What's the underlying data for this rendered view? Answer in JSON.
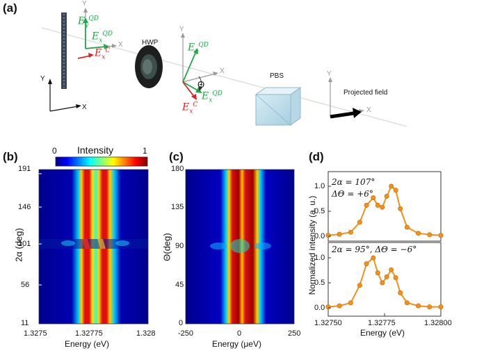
{
  "panels": {
    "a": "(a)",
    "b": "(b)",
    "c": "(c)",
    "d": "(d)"
  },
  "schematic": {
    "axis_y": "Y",
    "axis_x": "X",
    "hwp": "HWP",
    "pbs": "PBS",
    "projected_field": "Projected field",
    "theta": "Θ",
    "ey_qd": "E",
    "ey_qd_sup": "QD",
    "ey_qd_sub": "y",
    "ex_qd_sub": "x",
    "ex_c_sup": "C",
    "colors": {
      "qd": "#22a64a",
      "cavity": "#dd2222",
      "axis": "#999999"
    }
  },
  "colorbar": {
    "title": "Intensity",
    "min": "0",
    "max": "1"
  },
  "panel_b": {
    "ylabel": "2α (deg)",
    "xlabel": "Energy (eV)",
    "yticks": [
      "191",
      "146",
      "101",
      "56",
      "11"
    ],
    "xticks": [
      "1.3275",
      "1.32775",
      "1.328"
    ]
  },
  "panel_c": {
    "ylabel": "Θ(deg)",
    "xlabel": "Energy (μeV)",
    "yticks": [
      "180",
      "135",
      "90",
      "45",
      "0"
    ],
    "xticks": [
      "-250",
      "0",
      "250"
    ]
  },
  "panel_d": {
    "ylabel": "Normalized intensity (a. u.)",
    "xlabel": "Energy (eV)",
    "xticks": [
      "1.32750",
      "1.32775",
      "1.32800"
    ],
    "yticks_top": [
      "1.0",
      "0.5",
      "0.0"
    ],
    "yticks_bottom": [
      "1.0",
      "0.5",
      "0.0"
    ],
    "top_annot1": "2α = 107°",
    "top_annot2": "ΔΘ = +6°",
    "bottom_annot": "2α = 95°, ΔΘ = −6°",
    "marker_color": "#f0901e"
  },
  "chart_data": [
    {
      "type": "heatmap",
      "title": "",
      "xlabel": "Energy (eV)",
      "ylabel": "2α (deg)",
      "xlim": [
        1.3275,
        1.328
      ],
      "ylim": [
        11,
        191
      ],
      "description_of_bands": "two vertical emission lines near 1.32770 and 1.32780 eV, anticrossing near 2α = 101",
      "colorbar": [
        0,
        1
      ]
    },
    {
      "type": "heatmap",
      "title": "",
      "xlabel": "Energy (μeV)",
      "ylabel": "Θ(deg)",
      "xlim": [
        -250,
        250
      ],
      "ylim": [
        0,
        180
      ],
      "colorbar": [
        0,
        1
      ]
    },
    {
      "type": "scatter",
      "xlabel": "Energy (eV)",
      "ylabel": "Normalized intensity (a. u.)",
      "xlim": [
        1.3275,
        1.328
      ],
      "ylim": [
        0,
        1.1
      ],
      "series": [
        {
          "name": "2α = 107°, ΔΘ = +6°",
          "x": [
            1.3275,
            1.32755,
            1.3276,
            1.32764,
            1.32767,
            1.3277,
            1.32772,
            1.32774,
            1.32776,
            1.32778,
            1.3278,
            1.32782,
            1.32785,
            1.3279,
            1.32795,
            1.328
          ],
          "values": [
            0.02,
            0.04,
            0.08,
            0.28,
            0.62,
            0.77,
            0.62,
            0.58,
            0.8,
            1.0,
            0.92,
            0.55,
            0.18,
            0.06,
            0.03,
            0.02
          ]
        },
        {
          "name": "2α = 95°, ΔΘ = −6°",
          "x": [
            1.3275,
            1.32755,
            1.3276,
            1.32764,
            1.32767,
            1.3277,
            1.32772,
            1.32774,
            1.32776,
            1.32778,
            1.3278,
            1.32782,
            1.32785,
            1.3279,
            1.32795,
            1.328
          ],
          "values": [
            0.02,
            0.04,
            0.1,
            0.45,
            0.88,
            1.0,
            0.7,
            0.5,
            0.62,
            0.76,
            0.6,
            0.3,
            0.1,
            0.04,
            0.02,
            0.02
          ]
        }
      ]
    }
  ]
}
